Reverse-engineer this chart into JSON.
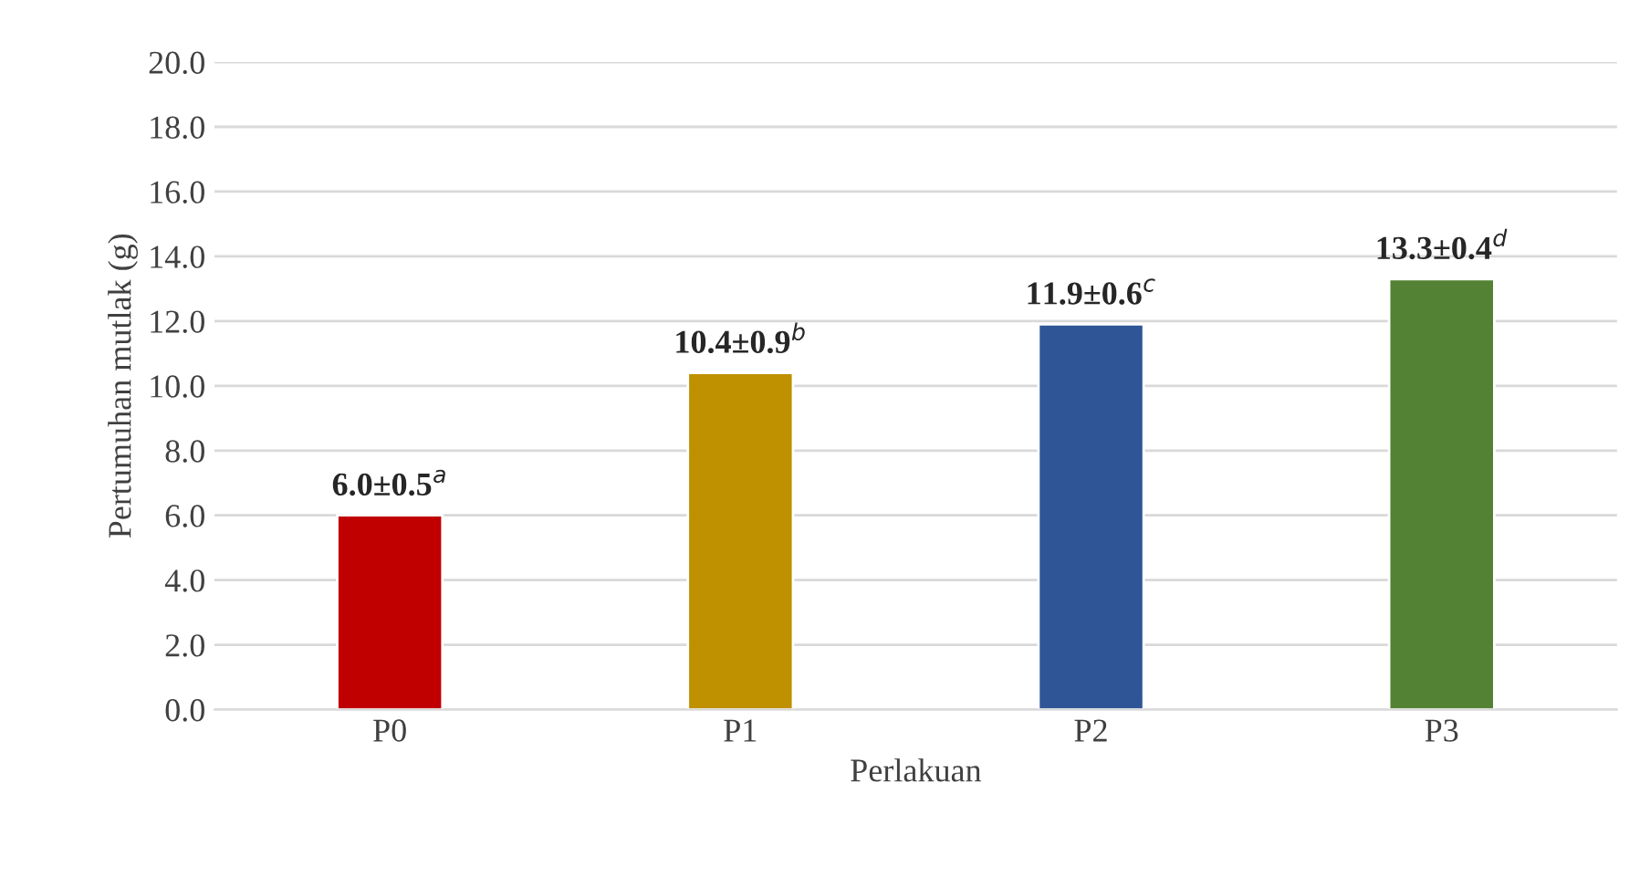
{
  "chart_data": {
    "type": "bar",
    "xlabel": "Perlakuan",
    "ylabel": "Pertumuhan mutlak (g)",
    "categories": [
      "P0",
      "P1",
      "P2",
      "P3"
    ],
    "values": [
      6.0,
      10.4,
      11.9,
      13.3
    ],
    "colors": [
      "#c00000",
      "#bf9000",
      "#2f5597",
      "#548235"
    ],
    "value_labels": [
      "6.0±0.5$^{a}$",
      "10.4±0.9$^{b}$",
      "11.9±0.6$^{c}$",
      "13.3±0.4$^{d}$"
    ],
    "ylim": [
      0,
      20
    ],
    "yticks": [
      {
        "value": 0,
        "label": "0.0"
      },
      {
        "value": 2,
        "label": "2.0"
      },
      {
        "value": 4,
        "label": "4.0"
      },
      {
        "value": 6,
        "label": "6.0"
      },
      {
        "value": 8,
        "label": "8.0"
      },
      {
        "value": 10,
        "label": "10.0"
      },
      {
        "value": 12,
        "label": "12.0"
      },
      {
        "value": 14,
        "label": "14.0"
      },
      {
        "value": 16,
        "label": "16.0"
      },
      {
        "value": 18,
        "label": "18.0"
      },
      {
        "value": 20,
        "label": "20.0"
      }
    ],
    "grid": "y",
    "legend": false
  }
}
